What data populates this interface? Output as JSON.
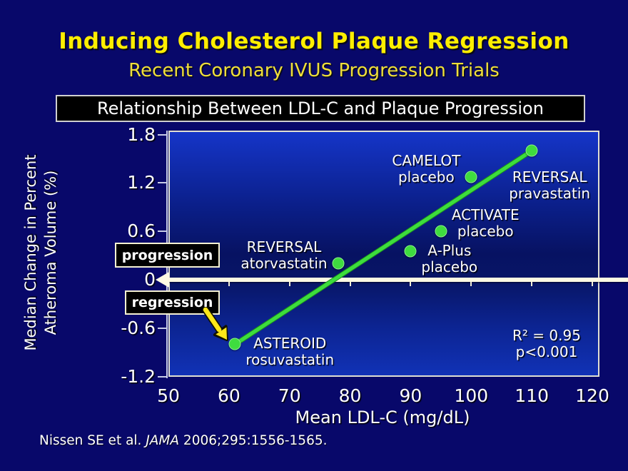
{
  "slide": {
    "title": "Inducing Cholesterol Plaque Regression",
    "subtitle": "Recent Coronary IVUS Progression Trials",
    "banner": "Relationship Between LDL-C and Plaque Progression",
    "citation_prefix": "Nissen SE et al. ",
    "citation_journal": "JAMA",
    "citation_suffix": " 2006;295:1556-1565."
  },
  "colors": {
    "background": "#08086a",
    "title_yellow": "#ffee00",
    "subtitle_yellow": "#efdf3a",
    "plot_blue_top": "#1535c8",
    "plot_blue_dark": "#071262",
    "trend_green": "#3ddd3d",
    "dot_green": "#3fdc3f",
    "zero_line_cream": "#fdf9e3",
    "axis_gray": "#c6cbe6",
    "arrow_yellow": "#ffe819"
  },
  "chart_data": {
    "type": "scatter",
    "title": "Relationship Between LDL-C and Plaque Progression",
    "xlabel": "Mean LDL-C (mg/dL)",
    "ylabel": "Median Change in Percent Atheroma Volume (%)",
    "ylabel_lines": [
      "Median Change in Percent",
      "Atheroma Volume (%)"
    ],
    "xlim": [
      50,
      120
    ],
    "ylim": [
      -1.2,
      1.8
    ],
    "x_ticks": [
      50,
      60,
      70,
      80,
      90,
      100,
      110,
      120
    ],
    "y_ticks": [
      1.8,
      1.2,
      0.6,
      0,
      -0.6,
      -1.2
    ],
    "grid": false,
    "points": [
      {
        "trial": "ASTEROID",
        "arm": "rosuvastatin",
        "x": 61,
        "y": -0.8,
        "label_pos": "right"
      },
      {
        "trial": "REVERSAL",
        "arm": "atorvastatin",
        "x": 78,
        "y": 0.2,
        "label_pos": "left"
      },
      {
        "trial": "A-Plus",
        "arm": "placebo",
        "x": 90,
        "y": 0.35,
        "label_pos": "right"
      },
      {
        "trial": "ACTIVATE",
        "arm": "placebo",
        "x": 95,
        "y": 0.6,
        "label_pos": "right-up"
      },
      {
        "trial": "CAMELOT",
        "arm": "placebo",
        "x": 100,
        "y": 1.27,
        "label_pos": "left"
      },
      {
        "trial": "REVERSAL",
        "arm": "pravastatin",
        "x": 110,
        "y": 1.6,
        "label_pos": "below-right"
      }
    ],
    "trend_line": {
      "from": {
        "x": 61,
        "y": -0.8
      },
      "to": {
        "x": 110,
        "y": 1.6
      }
    },
    "stats": [
      "R² = 0.95",
      "p<0.001"
    ],
    "annotations": {
      "progression": "progression",
      "regression": "regression"
    }
  }
}
